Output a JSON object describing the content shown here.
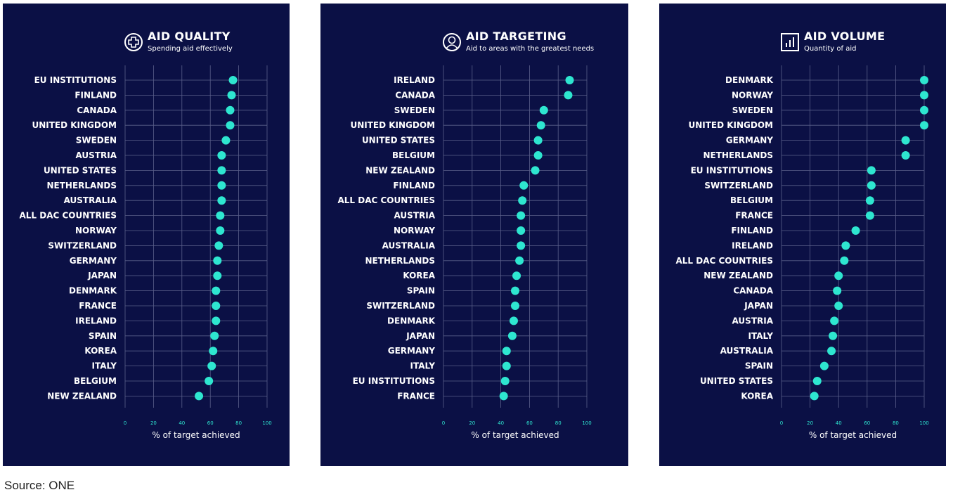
{
  "colors": {
    "panel_bg": "#0b1045",
    "dot": "#2ee6d0",
    "grid": "#5a5f8a",
    "text": "#ffffff"
  },
  "source": "Source: ONE",
  "chart_data": [
    {
      "type": "scatter",
      "icon": "plus-circle-icon",
      "title": "AID QUALITY",
      "subtitle": "Spending aid effectively",
      "xlabel": "% of target achieved",
      "xlim": [
        0,
        100
      ],
      "xticks": [
        "0",
        "20",
        "40",
        "60",
        "80",
        "100"
      ],
      "grid": true,
      "categories": [
        "EU INSTITUTIONS",
        "FINLAND",
        "CANADA",
        "UNITED KINGDOM",
        "SWEDEN",
        "AUSTRIA",
        "UNITED STATES",
        "NETHERLANDS",
        "AUSTRALIA",
        "ALL DAC COUNTRIES",
        "NORWAY",
        "SWITZERLAND",
        "GERMANY",
        "JAPAN",
        "DENMARK",
        "FRANCE",
        "IRELAND",
        "SPAIN",
        "KOREA",
        "ITALY",
        "BELGIUM",
        "NEW ZEALAND"
      ],
      "values": [
        76,
        75,
        74,
        74,
        71,
        68,
        68,
        68,
        68,
        67,
        67,
        66,
        65,
        65,
        64,
        64,
        64,
        63,
        62,
        61,
        59,
        52
      ]
    },
    {
      "type": "scatter",
      "icon": "person-circle-icon",
      "title": "AID TARGETING",
      "subtitle": "Aid to areas with the greatest needs",
      "xlabel": "% of target achieved",
      "xlim": [
        0,
        100
      ],
      "xticks": [
        "0",
        "20",
        "40",
        "60",
        "80",
        "100"
      ],
      "grid": true,
      "categories": [
        "IRELAND",
        "CANADA",
        "SWEDEN",
        "UNITED KINGDOM",
        "UNITED STATES",
        "BELGIUM",
        "NEW ZEALAND",
        "FINLAND",
        "ALL DAC COUNTRIES",
        "AUSTRIA",
        "NORWAY",
        "AUSTRALIA",
        "NETHERLANDS",
        "KOREA",
        "SPAIN",
        "SWITZERLAND",
        "DENMARK",
        "JAPAN",
        "GERMANY",
        "ITALY",
        "EU INSTITUTIONS",
        "FRANCE"
      ],
      "values": [
        88,
        87,
        70,
        68,
        66,
        66,
        64,
        56,
        55,
        54,
        54,
        54,
        53,
        51,
        50,
        50,
        49,
        48,
        44,
        44,
        43,
        42
      ]
    },
    {
      "type": "scatter",
      "icon": "bar-chart-icon",
      "title": "AID VOLUME",
      "subtitle": "Quantity of aid",
      "xlabel": "% of target achieved",
      "xlim": [
        0,
        100
      ],
      "xticks": [
        "0",
        "20",
        "40",
        "60",
        "80",
        "100"
      ],
      "grid": true,
      "categories": [
        "DENMARK",
        "NORWAY",
        "SWEDEN",
        "UNITED KINGDOM",
        "GERMANY",
        "NETHERLANDS",
        "EU INSTITUTIONS",
        "SWITZERLAND",
        "BELGIUM",
        "FRANCE",
        "FINLAND",
        "IRELAND",
        "ALL DAC COUNTRIES",
        "NEW ZEALAND",
        "CANADA",
        "JAPAN",
        "AUSTRIA",
        "ITALY",
        "AUSTRALIA",
        "SPAIN",
        "UNITED STATES",
        "KOREA"
      ],
      "values": [
        100,
        100,
        100,
        100,
        87,
        87,
        63,
        63,
        62,
        62,
        52,
        45,
        44,
        40,
        39,
        40,
        37,
        36,
        35,
        30,
        25,
        23
      ]
    }
  ]
}
